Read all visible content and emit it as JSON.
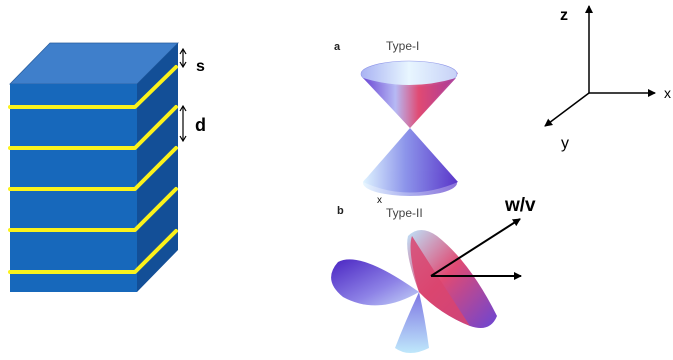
{
  "layered_block": {
    "labels": {
      "s": "s",
      "d": "d"
    },
    "colors": {
      "top": "#3f7fcb",
      "front": "#1768bb",
      "side": "#134f97",
      "lines": "#fbf21b"
    }
  },
  "panel_a": {
    "letter": "a",
    "title": "Type-I"
  },
  "panel_b": {
    "letter": "b",
    "title": "Type-II",
    "vector_label": "w/v"
  },
  "small_mark": "x",
  "axes": {
    "z": "z",
    "x": "x",
    "y": "y"
  },
  "cone_colors": {
    "pink": "#e04a73",
    "blue": "#9aa6ee",
    "violet": "#6a45d4",
    "light": "#dff3ff"
  }
}
